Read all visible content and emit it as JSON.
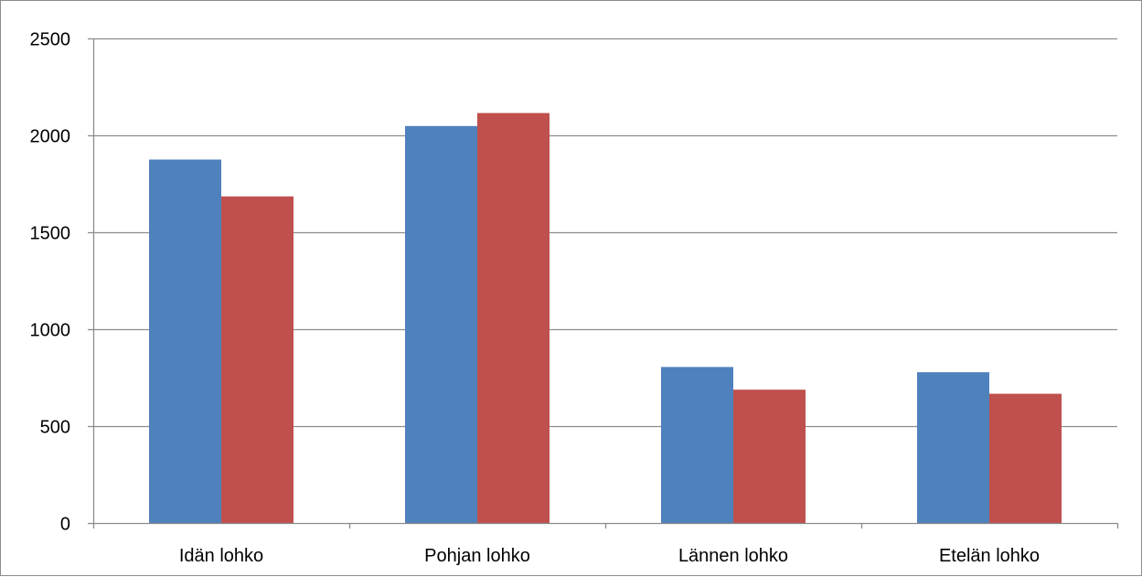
{
  "chart_data": {
    "type": "bar",
    "title": "",
    "xlabel": "",
    "ylabel": "",
    "categories": [
      "Idän lohko",
      "Pohjan lohko",
      "Lännen lohko",
      "Etelän lohko"
    ],
    "series": [
      {
        "values": [
          1875,
          2048,
          805,
          778
        ],
        "color": "#4f81bd"
      },
      {
        "values": [
          1685,
          2115,
          688,
          667
        ],
        "color": "#c0504d"
      }
    ],
    "ylim": [
      0,
      2500
    ],
    "yticks": [
      0,
      500,
      1000,
      1500,
      2000,
      2500
    ],
    "ytick_labels": [
      "0",
      "500",
      "1000",
      "1500",
      "2000",
      "2500"
    ],
    "grid": true,
    "legend": "none",
    "gridline_color": "#8c8c8c",
    "axis_color": "#8c8c8c"
  }
}
